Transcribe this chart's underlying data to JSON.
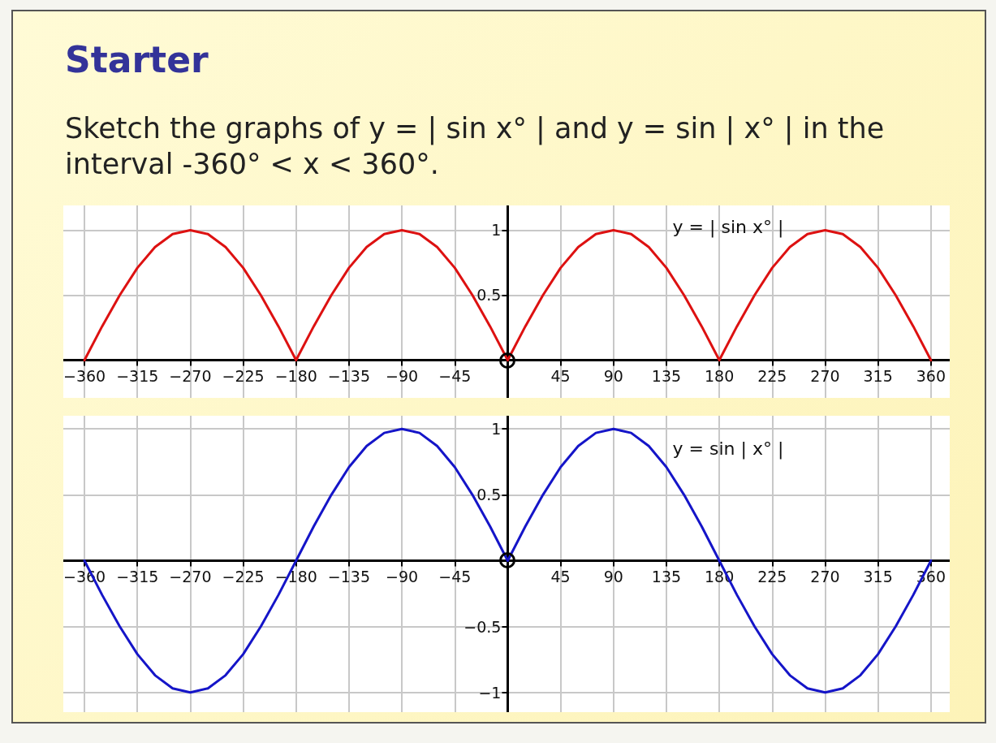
{
  "chart_data": [
    {
      "type": "line",
      "title": "Starter",
      "subtitle": "Sketch the graphs of y = | sin x° | and y = sin | x° | in the interval -360° < x < 360°.",
      "x": [
        -360,
        -345,
        -330,
        -315,
        -300,
        -285,
        -270,
        -255,
        -240,
        -225,
        -210,
        -195,
        -180,
        -165,
        -150,
        -135,
        -120,
        -105,
        -90,
        -75,
        -60,
        -45,
        -30,
        -15,
        0,
        15,
        30,
        45,
        60,
        75,
        90,
        105,
        120,
        135,
        150,
        165,
        180,
        195,
        210,
        225,
        240,
        255,
        270,
        285,
        300,
        315,
        330,
        345,
        360
      ],
      "series": [
        {
          "color": "#dd1111",
          "values": [
            0,
            0.26,
            0.5,
            0.71,
            0.87,
            0.97,
            1,
            0.97,
            0.87,
            0.71,
            0.5,
            0.26,
            0,
            0.26,
            0.5,
            0.71,
            0.87,
            0.97,
            1,
            0.97,
            0.87,
            0.71,
            0.5,
            0.26,
            0,
            0.26,
            0.5,
            0.71,
            0.87,
            0.97,
            1,
            0.97,
            0.87,
            0.71,
            0.5,
            0.26,
            0,
            0.26,
            0.5,
            0.71,
            0.87,
            0.97,
            1,
            0.97,
            0.87,
            0.71,
            0.5,
            0.26,
            0
          ]
        }
      ],
      "xlim": [
        -378,
        376
      ],
      "ylim": [
        -0.29,
        1.19
      ],
      "xticks": [
        -360,
        -315,
        -270,
        -225,
        -180,
        -135,
        -90,
        -45,
        45,
        90,
        135,
        180,
        225,
        270,
        315,
        360
      ],
      "yticks": [
        0.5,
        1
      ],
      "annotations": [
        "y = | sin x° |"
      ],
      "grid": true,
      "marker": "none",
      "line_style": "solid"
    },
    {
      "type": "line",
      "x": [
        -360,
        -345,
        -330,
        -315,
        -300,
        -285,
        -270,
        -255,
        -240,
        -225,
        -210,
        -195,
        -180,
        -165,
        -150,
        -135,
        -120,
        -105,
        -90,
        -75,
        -60,
        -45,
        -30,
        -15,
        0,
        15,
        30,
        45,
        60,
        75,
        90,
        105,
        120,
        135,
        150,
        165,
        180,
        195,
        210,
        225,
        240,
        255,
        270,
        285,
        300,
        315,
        330,
        345,
        360
      ],
      "series": [
        {
          "color": "#1515c8",
          "values": [
            0,
            -0.26,
            -0.5,
            -0.71,
            -0.87,
            -0.97,
            -1,
            -0.97,
            -0.87,
            -0.71,
            -0.5,
            -0.26,
            0,
            0.26,
            0.5,
            0.71,
            0.87,
            0.97,
            1,
            0.97,
            0.87,
            0.71,
            0.5,
            0.26,
            0,
            0.26,
            0.5,
            0.71,
            0.87,
            0.97,
            1,
            0.97,
            0.87,
            0.71,
            0.5,
            0.26,
            0,
            -0.26,
            -0.5,
            -0.71,
            -0.87,
            -0.97,
            -1,
            -0.97,
            -0.87,
            -0.71,
            -0.5,
            -0.26,
            0
          ]
        }
      ],
      "xlim": [
        -378,
        376
      ],
      "ylim": [
        -1.15,
        1.1
      ],
      "xticks": [
        -360,
        -315,
        -270,
        -225,
        -180,
        -135,
        -90,
        -45,
        45,
        90,
        135,
        180,
        225,
        270,
        315,
        360
      ],
      "yticks": [
        -1,
        -0.5,
        0.5,
        1
      ],
      "annotations": [
        "y = sin | x° |"
      ],
      "grid": true,
      "marker": "none",
      "line_style": "solid"
    }
  ]
}
